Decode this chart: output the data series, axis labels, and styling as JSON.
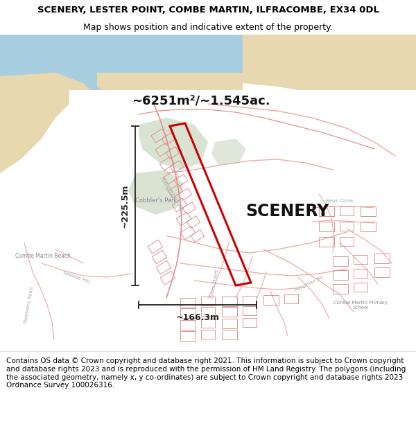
{
  "title": "SCENERY, LESTER POINT, COMBE MARTIN, ILFRACOMBE, EX34 0DL",
  "subtitle": "Map shows position and indicative extent of the property.",
  "area_label": "~6251m²/~1.545ac.",
  "property_label": "SCENERY",
  "dim_vertical": "~225.5m",
  "dim_horizontal": "~166.3m",
  "footer_text": "Contains OS data © Crown copyright and database right 2021. This information is subject to Crown copyright and database rights 2023 and is reproduced with the permission of HM Land Registry. The polygons (including the associated geometry, namely x, y co-ordinates) are subject to Crown copyright and database rights 2023 Ordnance Survey 100026316.",
  "title_fontsize": 9.5,
  "subtitle_fontsize": 9,
  "footer_fontsize": 7.5,
  "bg_color": "#ffffff",
  "map_bg": "#ffffff",
  "sea_color": "#a8cfe0",
  "beach_color": "#e8d8b0",
  "land_green": "#c8d8b8",
  "property_outline_color": "#cc0000",
  "dim_line_color": "#222222",
  "road_color": "#e8a8a0",
  "road_fill": "#f8e8e8"
}
